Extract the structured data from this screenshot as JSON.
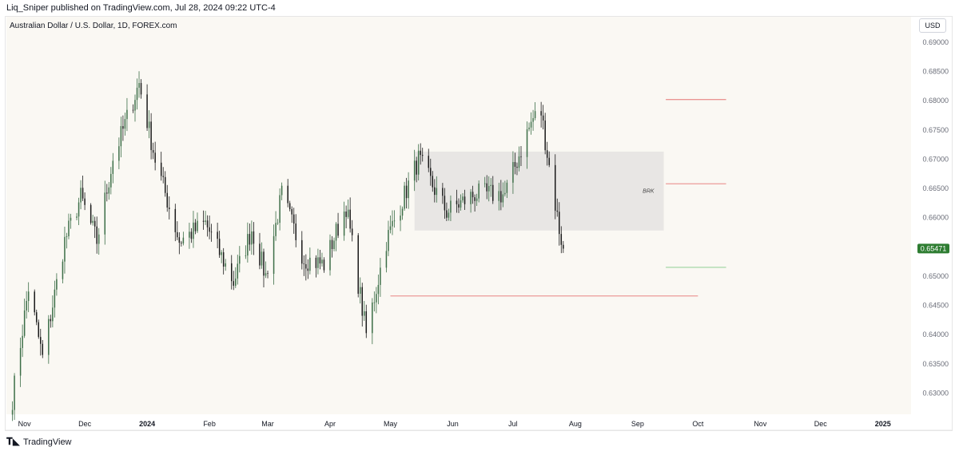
{
  "header": {
    "published_by": "Liq_Sniper published on TradingView.com, Jul 28, 2024 09:22 UTC-4",
    "symbol_title": "Australian Dollar / U.S. Dollar, 1D, FOREX.com",
    "currency_button": "USD"
  },
  "footer": {
    "logo_text": "TradingView"
  },
  "colors": {
    "background": "#faf8f3",
    "up_candle": "#3c6e47",
    "down_candle": "#1a1a1a",
    "zone_fill": "#e8e6e4",
    "level_line": "#e57373",
    "target_line": "#81c784",
    "price_badge": "#2e7d32",
    "price_badge_text": "#ffffff"
  },
  "chart_data": {
    "type": "candlestick",
    "symbol": "AUDUSD",
    "timeframe": "1D",
    "x_axis": {
      "tick_labels": [
        "Nov",
        "Dec",
        "2024",
        "Feb",
        "Mar",
        "Apr",
        "May",
        "Jun",
        "Jul",
        "Aug",
        "Sep",
        "Oct",
        "Nov",
        "Dec",
        "2025"
      ],
      "tick_dates": [
        "2023-11-01",
        "2023-12-01",
        "2024-01-01",
        "2024-02-01",
        "2024-03-01",
        "2024-04-01",
        "2024-05-01",
        "2024-06-01",
        "2024-07-01",
        "2024-08-01",
        "2024-09-01",
        "2024-10-01",
        "2024-11-01",
        "2024-12-01",
        "2025-01-01"
      ],
      "range": [
        "2023-10-23",
        "2025-01-15"
      ]
    },
    "y_axis": {
      "tick_labels": [
        "0.63000",
        "0.63500",
        "0.64000",
        "0.64500",
        "0.65000",
        "0.65500",
        "0.66000",
        "0.66500",
        "0.67000",
        "0.67500",
        "0.68000",
        "0.68500",
        "0.69000"
      ],
      "range": [
        0.6265,
        0.6915
      ],
      "position": "right"
    },
    "anchors": [
      {
        "date": "2023-10-26",
        "price": 0.629
      },
      {
        "date": "2023-11-03",
        "price": 0.648
      },
      {
        "date": "2023-11-10",
        "price": 0.636
      },
      {
        "date": "2023-11-21",
        "price": 0.656
      },
      {
        "date": "2023-11-29",
        "price": 0.6635
      },
      {
        "date": "2023-12-07",
        "price": 0.656
      },
      {
        "date": "2023-12-15",
        "price": 0.67
      },
      {
        "date": "2023-12-28",
        "price": 0.683
      },
      {
        "date": "2024-01-05",
        "price": 0.67
      },
      {
        "date": "2024-01-17",
        "price": 0.656
      },
      {
        "date": "2024-01-30",
        "price": 0.659
      },
      {
        "date": "2024-02-13",
        "price": 0.649
      },
      {
        "date": "2024-02-22",
        "price": 0.658
      },
      {
        "date": "2024-02-29",
        "price": 0.65
      },
      {
        "date": "2024-03-08",
        "price": 0.664
      },
      {
        "date": "2024-03-19",
        "price": 0.653
      },
      {
        "date": "2024-03-29",
        "price": 0.652
      },
      {
        "date": "2024-04-09",
        "price": 0.662
      },
      {
        "date": "2024-04-19",
        "price": 0.64
      },
      {
        "date": "2024-04-29",
        "price": 0.656
      },
      {
        "date": "2024-05-15",
        "price": 0.67
      },
      {
        "date": "2024-05-29",
        "price": 0.661
      },
      {
        "date": "2024-06-12",
        "price": 0.664
      },
      {
        "date": "2024-06-27",
        "price": 0.664
      },
      {
        "date": "2024-07-08",
        "price": 0.6745
      },
      {
        "date": "2024-07-11",
        "price": 0.677
      },
      {
        "date": "2024-07-15",
        "price": 0.678
      },
      {
        "date": "2024-07-18",
        "price": 0.671
      },
      {
        "date": "2024-07-24",
        "price": 0.658
      },
      {
        "date": "2024-07-26",
        "price": 0.6547
      }
    ],
    "zone": {
      "label": "BRK",
      "start": "2024-05-13",
      "end": "2024-09-14",
      "top": 0.6713,
      "bottom": 0.6578
    },
    "levels": [
      {
        "start": "2024-05-01",
        "end": "2024-10-01",
        "price": 0.6466,
        "role": "level"
      },
      {
        "start": "2024-09-15",
        "end": "2024-10-15",
        "price": 0.6802,
        "role": "level"
      },
      {
        "start": "2024-09-15",
        "end": "2024-10-15",
        "price": 0.6658,
        "role": "level"
      },
      {
        "start": "2024-09-15",
        "end": "2024-10-15",
        "price": 0.6515,
        "role": "target"
      }
    ],
    "last_price": "0.65471",
    "grid": false
  }
}
